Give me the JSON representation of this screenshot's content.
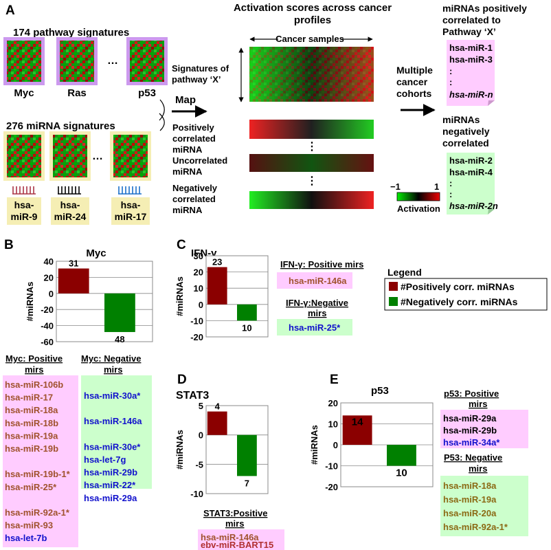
{
  "panelA": {
    "label": "A",
    "pathway_title": "174 pathway signatures",
    "pathways": [
      "Myc",
      "Ras",
      "p53"
    ],
    "ellipsis": "…",
    "mirna_title": "276 miRNA signatures",
    "mirnas": [
      [
        "hsa-",
        "miR-9"
      ],
      [
        "hsa-",
        "miR-24"
      ],
      [
        "hsa-",
        "miR-17"
      ]
    ],
    "map": "Map",
    "activation_title": [
      "Activation scores across cancer",
      "profiles"
    ],
    "cancer_samples": "Cancer samples",
    "signatures_label": [
      "Signatures of",
      "pathway ‘X’"
    ],
    "row_labels": [
      [
        "Positively",
        "correlated",
        "miRNA"
      ],
      [
        "Uncorrelated",
        "miRNA"
      ],
      [
        "Negatively",
        "correlated",
        "miRNA"
      ]
    ],
    "vdots": "⋮",
    "multiple": [
      "Multiple",
      "cancer",
      "cohorts"
    ],
    "pos_title": [
      "miRNAs positively",
      "correlated to",
      "Pathway ‘X’"
    ],
    "pos_list": [
      "hsa-miR-1",
      "hsa-miR-3",
      ":",
      ":",
      "hsa-miR-n"
    ],
    "neg_title": [
      "miRNAs",
      "negatively",
      "correlated"
    ],
    "neg_list": [
      "hsa-miR-2",
      "hsa-miR-4",
      ":",
      ":",
      "hsa-miR-2n"
    ],
    "scale_min": "−1",
    "scale_max": "1",
    "scale_label": "Activation",
    "colors": {
      "red": "#c8102e",
      "green": "#1fa51f",
      "pink": "#ffccff",
      "lightgreen": "#ccffcc",
      "tan": "#f5eeb4",
      "violet": "#cc99ee"
    }
  },
  "panelB": {
    "label": "B",
    "title": "Myc",
    "ylabel": "#miRNAs",
    "yticks": [
      "40",
      "20",
      "0",
      "-20",
      "-40",
      "-60"
    ],
    "pos_value": "31",
    "neg_value": "48",
    "pos_header": [
      "Myc: Positive",
      "mirs"
    ],
    "neg_header": [
      "Myc: Negative",
      "mirs"
    ],
    "pos_list": [
      "hsa-miR-106b",
      "hsa-miR-17",
      "hsa-miR-18a",
      "hsa-miR-18b",
      "hsa-miR-19a",
      "hsa-miR-19b",
      "",
      "hsa-miR-19b-1*",
      "hsa-miR-25*",
      "",
      "hsa-miR-92a-1*",
      "hsa-miR-93",
      "hsa-let-7b"
    ],
    "neg_list": [
      "hsa-miR-30a*",
      "",
      "hsa-miR-146a",
      "",
      "hsa-miR-30e*",
      "hsa-let-7g",
      "hsa-miR-29b",
      "hsa-miR-22*",
      "hsa-miR-29a"
    ]
  },
  "panelC": {
    "label": "C",
    "title": "IFN-γ",
    "ylabel": "#miRNAs",
    "yticks": [
      "30",
      "20",
      "10",
      "0",
      "-10",
      "-20"
    ],
    "pos_value": "23",
    "neg_value": "10",
    "pos_header": "IFN-γ: Positive mirs",
    "pos_list": [
      "hsa-miR-146a"
    ],
    "neg_header": [
      "IFN-γ:Negative",
      "mirs"
    ],
    "neg_list": [
      "hsa-miR-25*"
    ]
  },
  "legend": {
    "title": "Legend",
    "items": [
      "#Positively corr. miRNAs",
      "#Negatively corr. miRNAs"
    ],
    "colors": [
      "#8b0000",
      "#008000"
    ]
  },
  "panelD": {
    "label": "D",
    "title": "STAT3",
    "ylabel": "#miRNAs",
    "yticks": [
      "5",
      "0",
      "-5",
      "-10"
    ],
    "pos_value": "4",
    "neg_value": "7",
    "pos_header": [
      "STAT3:Positive",
      "mirs"
    ],
    "pos_list": [
      "hsa-miR-146a",
      "ebv-miR-BART15"
    ]
  },
  "panelE": {
    "label": "E",
    "title": "p53",
    "ylabel": "#miRNAs",
    "yticks": [
      "20",
      "10",
      "0",
      "-10",
      "-20"
    ],
    "pos_value": "14",
    "neg_value": "10",
    "pos_header": [
      "p53: Positive",
      "mirs"
    ],
    "pos_list": [
      "hsa-miR-29a",
      "hsa-miR-29b",
      "hsa-miR-34a*"
    ],
    "neg_header": [
      "P53: Negative",
      "mirs"
    ],
    "neg_list": [
      "hsa-miR-18a",
      "hsa-miR-19a",
      "hsa-miR-20a",
      "hsa-miR-92a-1*"
    ]
  },
  "chart_data": [
    {
      "type": "bar",
      "title": "Myc",
      "categories": [
        "#Positively corr. miRNAs",
        "#Negatively corr. miRNAs"
      ],
      "values": [
        31,
        -48
      ],
      "ylabel": "#miRNAs",
      "ylim": [
        -60,
        40
      ]
    },
    {
      "type": "bar",
      "title": "IFN-γ",
      "categories": [
        "#Positively corr. miRNAs",
        "#Negatively corr. miRNAs"
      ],
      "values": [
        23,
        -10
      ],
      "ylabel": "#miRNAs",
      "ylim": [
        -20,
        30
      ]
    },
    {
      "type": "bar",
      "title": "STAT3",
      "categories": [
        "#Positively corr. miRNAs",
        "#Negatively corr. miRNAs"
      ],
      "values": [
        4,
        -7
      ],
      "ylabel": "#miRNAs",
      "ylim": [
        -10,
        5
      ]
    },
    {
      "type": "bar",
      "title": "p53",
      "categories": [
        "#Positively corr. miRNAs",
        "#Negatively corr. miRNAs"
      ],
      "values": [
        14,
        -10
      ],
      "ylabel": "#miRNAs",
      "ylim": [
        -20,
        20
      ]
    }
  ]
}
